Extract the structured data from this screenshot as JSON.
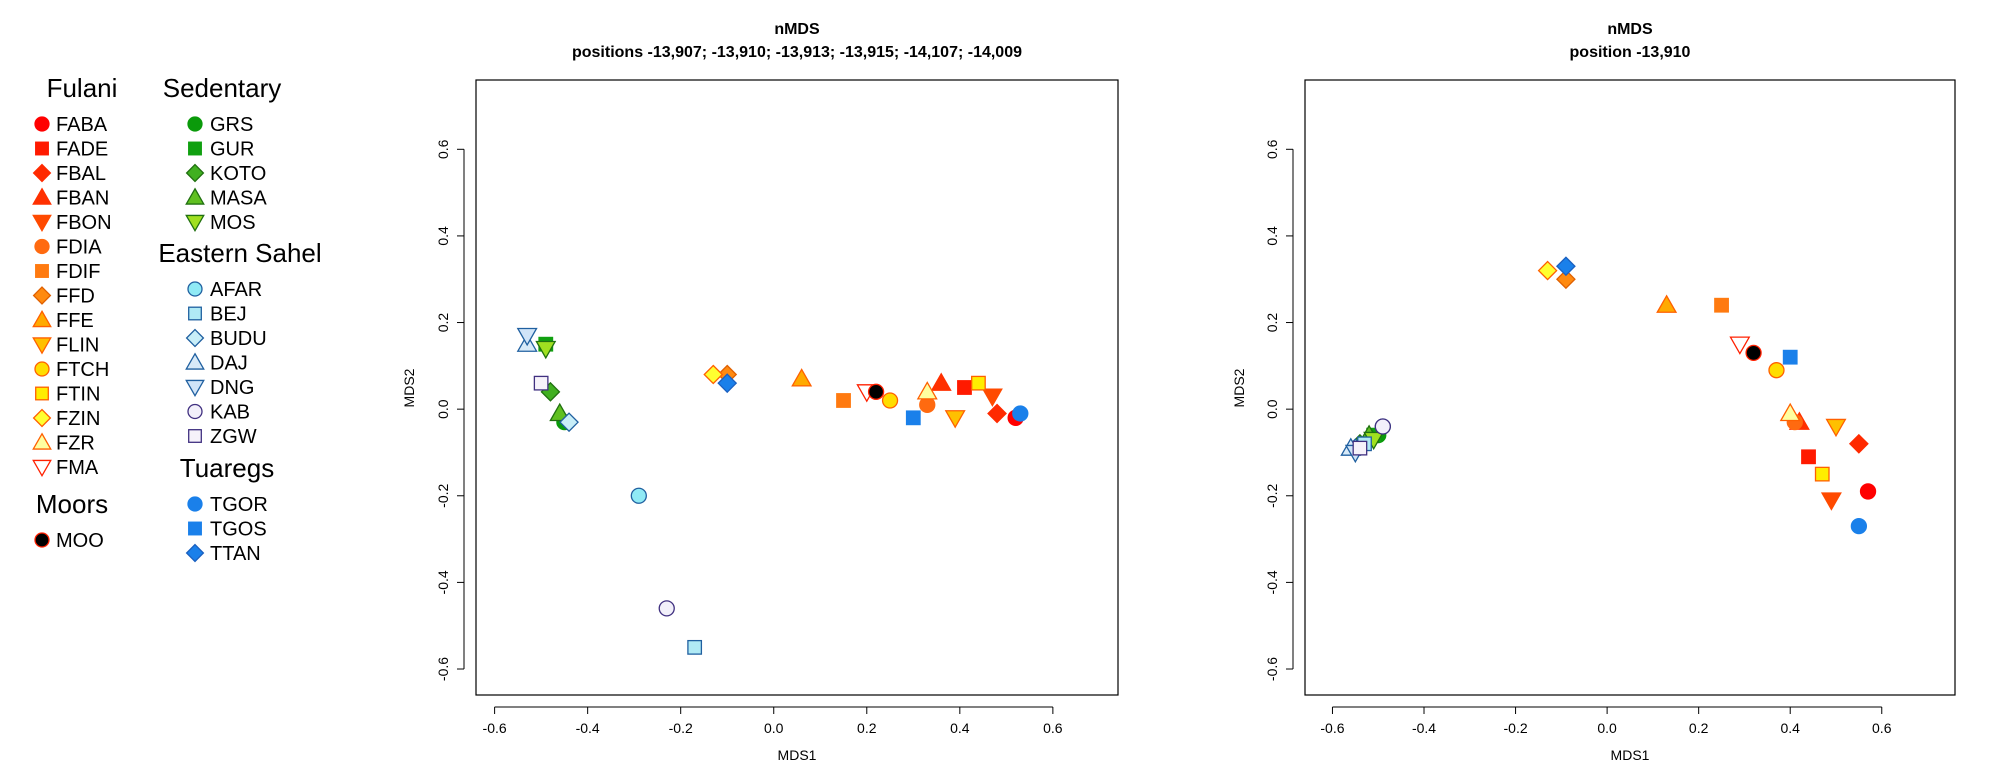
{
  "legend": {
    "groups": [
      {
        "heading": "Fulani",
        "items": [
          {
            "label": "FABA",
            "shape": "circle",
            "fill": "#ff0000",
            "stroke": "#ff0000"
          },
          {
            "label": "FADE",
            "shape": "square",
            "fill": "#ff1a00",
            "stroke": "#ff1a00"
          },
          {
            "label": "FBAL",
            "shape": "diamond",
            "fill": "#ff2a00",
            "stroke": "#ff2a00"
          },
          {
            "label": "FBAN",
            "shape": "triangle-up",
            "fill": "#ff3000",
            "stroke": "#ff3000"
          },
          {
            "label": "FBON",
            "shape": "triangle-down",
            "fill": "#ff4a00",
            "stroke": "#ff4a00"
          },
          {
            "label": "FDIA",
            "shape": "circle",
            "fill": "#ff6a10",
            "stroke": "#ff6a10"
          },
          {
            "label": "FDIF",
            "shape": "square",
            "fill": "#ff7a10",
            "stroke": "#ff7a10"
          },
          {
            "label": "FFD",
            "shape": "diamond",
            "fill": "#ff8a10",
            "stroke": "#e06000"
          },
          {
            "label": "FFE",
            "shape": "triangle-up",
            "fill": "#ffaa00",
            "stroke": "#ff6000"
          },
          {
            "label": "FLIN",
            "shape": "triangle-down",
            "fill": "#ffc000",
            "stroke": "#ff6000"
          },
          {
            "label": "FTCH",
            "shape": "circle",
            "fill": "#ffdd00",
            "stroke": "#ff6000"
          },
          {
            "label": "FTIN",
            "shape": "square",
            "fill": "#ffee00",
            "stroke": "#ff6000"
          },
          {
            "label": "FZIN",
            "shape": "diamond",
            "fill": "#ffff30",
            "stroke": "#ff6000"
          },
          {
            "label": "FZR",
            "shape": "triangle-up",
            "fill": "#ffffa0",
            "stroke": "#ff6000"
          },
          {
            "label": "FMA",
            "shape": "triangle-down",
            "fill": "#ffffff",
            "stroke": "#ff2000"
          }
        ]
      },
      {
        "heading": "Moors",
        "items": [
          {
            "label": "MOO",
            "shape": "circle",
            "fill": "#000000",
            "stroke": "#ff2000"
          }
        ]
      },
      {
        "heading": "Sedentary",
        "items": [
          {
            "label": "GRS",
            "shape": "circle",
            "fill": "#0a9a0a",
            "stroke": "#0a9a0a"
          },
          {
            "label": "GUR",
            "shape": "square",
            "fill": "#10a010",
            "stroke": "#10a010"
          },
          {
            "label": "KOTO",
            "shape": "diamond",
            "fill": "#40b020",
            "stroke": "#207010"
          },
          {
            "label": "MASA",
            "shape": "triangle-up",
            "fill": "#60c020",
            "stroke": "#207010"
          },
          {
            "label": "MOS",
            "shape": "triangle-down",
            "fill": "#a0e020",
            "stroke": "#207010"
          }
        ]
      },
      {
        "heading": "Eastern Sahel",
        "items": [
          {
            "label": "AFAR",
            "shape": "circle",
            "fill": "#90eaf5",
            "stroke": "#2060a0"
          },
          {
            "label": "BEJ",
            "shape": "square",
            "fill": "#b0eaf5",
            "stroke": "#2060a0"
          },
          {
            "label": "BUDU",
            "shape": "diamond",
            "fill": "#c8eef8",
            "stroke": "#2060a0"
          },
          {
            "label": "DAJ",
            "shape": "triangle-up",
            "fill": "#d8eaf8",
            "stroke": "#2060a0"
          },
          {
            "label": "DNG",
            "shape": "triangle-down",
            "fill": "#d0e4f8",
            "stroke": "#2060a0"
          },
          {
            "label": "KAB",
            "shape": "circle",
            "fill": "#f2f0fa",
            "stroke": "#403080"
          },
          {
            "label": "ZGW",
            "shape": "square",
            "fill": "#f6f2fa",
            "stroke": "#403080"
          }
        ]
      },
      {
        "heading": "Tuaregs",
        "items": [
          {
            "label": "TGOR",
            "shape": "circle",
            "fill": "#1a80ea",
            "stroke": "#1a80ea"
          },
          {
            "label": "TGOS",
            "shape": "square",
            "fill": "#1a80ea",
            "stroke": "#1a80ea"
          },
          {
            "label": "TTAN",
            "shape": "diamond",
            "fill": "#1a80ea",
            "stroke": "#1a60c0"
          }
        ]
      }
    ]
  },
  "chart_data": [
    {
      "type": "scatter",
      "title": "nMDS",
      "subtitle": "positions -13,907; -13,910; -13,913; -13,915; -14,107; -14,009",
      "xlabel": "MDS1",
      "ylabel": "MDS2",
      "xlim": [
        -0.64,
        0.74
      ],
      "ylim": [
        -0.66,
        0.76
      ],
      "xticks": [
        -0.6,
        -0.4,
        -0.2,
        0.0,
        0.2,
        0.4,
        0.6
      ],
      "yticks": [
        -0.6,
        -0.4,
        -0.2,
        0.0,
        0.2,
        0.4,
        0.6
      ],
      "xtick_labels": [
        "-0.6",
        "-0.4",
        "-0.2",
        "0.0",
        "0.2",
        "0.4",
        "0.6"
      ],
      "ytick_labels": [
        "-0.6",
        "-0.4",
        "-0.2",
        "0.0",
        "0.2",
        "0.4",
        "0.6"
      ],
      "grid": false,
      "points": [
        {
          "pop": "FABA",
          "x": 0.52,
          "y": -0.02
        },
        {
          "pop": "FADE",
          "x": 0.41,
          "y": 0.05
        },
        {
          "pop": "FBAL",
          "x": 0.48,
          "y": -0.01
        },
        {
          "pop": "FBAN",
          "x": 0.36,
          "y": 0.06
        },
        {
          "pop": "FBON",
          "x": 0.47,
          "y": 0.03
        },
        {
          "pop": "FDIA",
          "x": 0.33,
          "y": 0.01
        },
        {
          "pop": "FDIF",
          "x": 0.15,
          "y": 0.02
        },
        {
          "pop": "FFD",
          "x": -0.1,
          "y": 0.08
        },
        {
          "pop": "FFE",
          "x": 0.06,
          "y": 0.07
        },
        {
          "pop": "FLIN",
          "x": 0.39,
          "y": -0.02
        },
        {
          "pop": "FTCH",
          "x": 0.25,
          "y": 0.02
        },
        {
          "pop": "FTIN",
          "x": 0.44,
          "y": 0.06
        },
        {
          "pop": "FZIN",
          "x": -0.13,
          "y": 0.08
        },
        {
          "pop": "FZR",
          "x": 0.33,
          "y": 0.04
        },
        {
          "pop": "FMA",
          "x": 0.2,
          "y": 0.04
        },
        {
          "pop": "MOO",
          "x": 0.22,
          "y": 0.04
        },
        {
          "pop": "GRS",
          "x": -0.45,
          "y": -0.03
        },
        {
          "pop": "GUR",
          "x": -0.49,
          "y": 0.15
        },
        {
          "pop": "KOTO",
          "x": -0.48,
          "y": 0.04
        },
        {
          "pop": "MASA",
          "x": -0.46,
          "y": -0.01
        },
        {
          "pop": "MOS",
          "x": -0.49,
          "y": 0.14
        },
        {
          "pop": "AFAR",
          "x": -0.29,
          "y": -0.2
        },
        {
          "pop": "BEJ",
          "x": -0.17,
          "y": -0.55
        },
        {
          "pop": "BUDU",
          "x": -0.44,
          "y": -0.03
        },
        {
          "pop": "DAJ",
          "x": -0.53,
          "y": 0.15
        },
        {
          "pop": "DNG",
          "x": -0.53,
          "y": 0.17
        },
        {
          "pop": "KAB",
          "x": -0.23,
          "y": -0.46
        },
        {
          "pop": "ZGW",
          "x": -0.5,
          "y": 0.06
        },
        {
          "pop": "TGOR",
          "x": 0.53,
          "y": -0.01
        },
        {
          "pop": "TGOS",
          "x": 0.3,
          "y": -0.02
        },
        {
          "pop": "TTAN",
          "x": -0.1,
          "y": 0.06
        }
      ]
    },
    {
      "type": "scatter",
      "title": "nMDS",
      "subtitle": "position -13,910",
      "xlabel": "MDS1",
      "ylabel": "MDS2",
      "xlim": [
        -0.66,
        0.76
      ],
      "ylim": [
        -0.66,
        0.76
      ],
      "xticks": [
        -0.6,
        -0.4,
        -0.2,
        0.0,
        0.2,
        0.4,
        0.6
      ],
      "yticks": [
        -0.6,
        -0.4,
        -0.2,
        0.0,
        0.2,
        0.4,
        0.6
      ],
      "xtick_labels": [
        "-0.6",
        "-0.4",
        "-0.2",
        "0.0",
        "0.2",
        "0.4",
        "0.6"
      ],
      "ytick_labels": [
        "-0.6",
        "-0.4",
        "-0.2",
        "0.0",
        "0.2",
        "0.4",
        "0.6"
      ],
      "grid": false,
      "points": [
        {
          "pop": "FABA",
          "x": 0.57,
          "y": -0.19
        },
        {
          "pop": "FADE",
          "x": 0.44,
          "y": -0.11
        },
        {
          "pop": "FBAL",
          "x": 0.55,
          "y": -0.08
        },
        {
          "pop": "FBAN",
          "x": 0.42,
          "y": -0.03
        },
        {
          "pop": "FBON",
          "x": 0.49,
          "y": -0.21
        },
        {
          "pop": "FDIA",
          "x": 0.41,
          "y": -0.03
        },
        {
          "pop": "FDIF",
          "x": 0.25,
          "y": 0.24
        },
        {
          "pop": "FFD",
          "x": -0.09,
          "y": 0.3
        },
        {
          "pop": "FFE",
          "x": 0.13,
          "y": 0.24
        },
        {
          "pop": "FLIN",
          "x": 0.5,
          "y": -0.04
        },
        {
          "pop": "FTCH",
          "x": 0.37,
          "y": 0.09
        },
        {
          "pop": "FTIN",
          "x": 0.47,
          "y": -0.15
        },
        {
          "pop": "FZIN",
          "x": -0.13,
          "y": 0.32
        },
        {
          "pop": "FZR",
          "x": 0.4,
          "y": -0.01
        },
        {
          "pop": "FMA",
          "x": 0.29,
          "y": 0.15
        },
        {
          "pop": "MOO",
          "x": 0.32,
          "y": 0.13
        },
        {
          "pop": "GRS",
          "x": -0.5,
          "y": -0.06
        },
        {
          "pop": "GUR",
          "x": -0.51,
          "y": -0.06
        },
        {
          "pop": "KOTO",
          "x": -0.54,
          "y": -0.08
        },
        {
          "pop": "MASA",
          "x": -0.52,
          "y": -0.06
        },
        {
          "pop": "MOS",
          "x": -0.51,
          "y": -0.07
        },
        {
          "pop": "AFAR",
          "x": -0.49,
          "y": -0.04
        },
        {
          "pop": "BEJ",
          "x": -0.53,
          "y": -0.08
        },
        {
          "pop": "BUDU",
          "x": -0.55,
          "y": -0.09
        },
        {
          "pop": "DAJ",
          "x": -0.56,
          "y": -0.09
        },
        {
          "pop": "DNG",
          "x": -0.55,
          "y": -0.1
        },
        {
          "pop": "KAB",
          "x": -0.49,
          "y": -0.04
        },
        {
          "pop": "ZGW",
          "x": -0.54,
          "y": -0.09
        },
        {
          "pop": "TGOR",
          "x": 0.55,
          "y": -0.27
        },
        {
          "pop": "TGOS",
          "x": 0.4,
          "y": 0.12
        },
        {
          "pop": "TTAN",
          "x": -0.09,
          "y": 0.33
        }
      ]
    }
  ]
}
